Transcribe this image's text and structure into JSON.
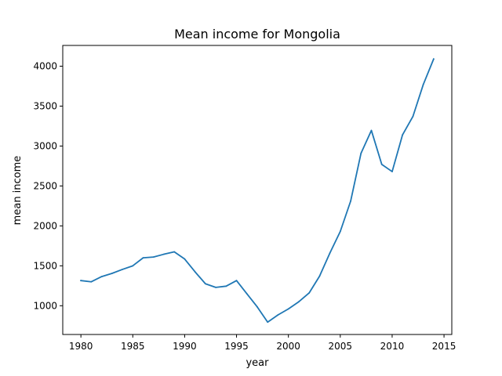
{
  "chart_data": {
    "type": "line",
    "title": "Mean income for Mongolia",
    "xlabel": "year",
    "ylabel": "mean income",
    "xlim": [
      1978.25,
      2015.75
    ],
    "ylim": [
      640,
      4260
    ],
    "xticks": [
      1980,
      1985,
      1990,
      1995,
      2000,
      2005,
      2010,
      2015
    ],
    "yticks": [
      1000,
      1500,
      2000,
      2500,
      3000,
      3500,
      4000
    ],
    "grid": false,
    "line_color": "#1f77b4",
    "series": [
      {
        "x": [
          1980,
          1981,
          1982,
          1983,
          1984,
          1985,
          1986,
          1987,
          1988,
          1989,
          1990,
          1991,
          1992,
          1993,
          1994,
          1995,
          1996,
          1997,
          1998,
          1999,
          2000,
          2001,
          2002,
          2003,
          2004,
          2005,
          2006,
          2007,
          2008,
          2009,
          2010,
          2011,
          2012,
          2013,
          2014
        ],
        "y": [
          1315,
          1300,
          1365,
          1405,
          1455,
          1500,
          1600,
          1610,
          1645,
          1675,
          1585,
          1425,
          1275,
          1230,
          1245,
          1315,
          1150,
          985,
          795,
          885,
          960,
          1050,
          1160,
          1370,
          1660,
          1930,
          2310,
          2910,
          3195,
          2770,
          2680,
          3140,
          3370,
          3770,
          4090
        ]
      }
    ]
  }
}
